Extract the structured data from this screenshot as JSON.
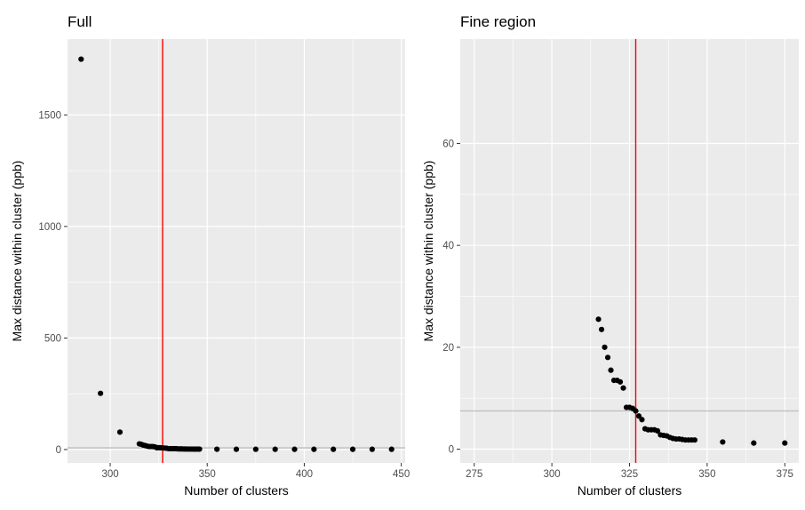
{
  "chart_data": [
    {
      "type": "scatter",
      "title": "Full",
      "xlabel": "Number of clusters",
      "ylabel": "Max distance within cluster (ppb)",
      "xlim": [
        278,
        452
      ],
      "ylim": [
        -60,
        1840
      ],
      "xticks": [
        300,
        350,
        400,
        450
      ],
      "yticks": [
        0,
        500,
        1000,
        1500
      ],
      "vline": 327,
      "hline": 7.5,
      "points": [
        [
          285,
          1750
        ],
        [
          295,
          252
        ],
        [
          305,
          78
        ],
        [
          315,
          25.5
        ],
        [
          316,
          23.5
        ],
        [
          317,
          20
        ],
        [
          318,
          18
        ],
        [
          319,
          15.5
        ],
        [
          320,
          13.5
        ],
        [
          321,
          13.5
        ],
        [
          322,
          13.2
        ],
        [
          323,
          12
        ],
        [
          324,
          8.2
        ],
        [
          325,
          8.2
        ],
        [
          326,
          8
        ],
        [
          327,
          7.5
        ],
        [
          328,
          6.5
        ],
        [
          329,
          5.8
        ],
        [
          330,
          4
        ],
        [
          331,
          3.8
        ],
        [
          332,
          3.8
        ],
        [
          333,
          3.8
        ],
        [
          334,
          3.6
        ],
        [
          335,
          2.8
        ],
        [
          336,
          2.7
        ],
        [
          337,
          2.6
        ],
        [
          338,
          2.3
        ],
        [
          339,
          2.1
        ],
        [
          340,
          2
        ],
        [
          341,
          2
        ],
        [
          342,
          1.9
        ],
        [
          343,
          1.8
        ],
        [
          344,
          1.8
        ],
        [
          345,
          1.8
        ],
        [
          346,
          1.8
        ],
        [
          355,
          1.4
        ],
        [
          365,
          1.2
        ],
        [
          375,
          1.2
        ],
        [
          385,
          1.1
        ],
        [
          395,
          1.1
        ],
        [
          405,
          1.1
        ],
        [
          415,
          1.1
        ],
        [
          425,
          1.1
        ],
        [
          435,
          1.1
        ],
        [
          445,
          1.1
        ]
      ]
    },
    {
      "type": "scatter",
      "title": "Fine region",
      "xlabel": "Number of clusters",
      "ylabel": "Max distance within cluster (ppb)",
      "xlim": [
        270.5,
        379.5
      ],
      "ylim": [
        -2.7,
        80.5
      ],
      "xticks": [
        275,
        300,
        325,
        350,
        375
      ],
      "yticks": [
        0,
        20,
        40,
        60
      ],
      "vline": 327,
      "hline": 7.5,
      "points": [
        [
          315,
          25.5
        ],
        [
          316,
          23.5
        ],
        [
          317,
          20
        ],
        [
          318,
          18
        ],
        [
          319,
          15.5
        ],
        [
          320,
          13.5
        ],
        [
          321,
          13.5
        ],
        [
          322,
          13.2
        ],
        [
          323,
          12
        ],
        [
          324,
          8.2
        ],
        [
          325,
          8.2
        ],
        [
          326,
          8
        ],
        [
          327,
          7.5
        ],
        [
          328,
          6.5
        ],
        [
          329,
          5.8
        ],
        [
          330,
          4
        ],
        [
          331,
          3.8
        ],
        [
          332,
          3.8
        ],
        [
          333,
          3.8
        ],
        [
          334,
          3.6
        ],
        [
          335,
          2.8
        ],
        [
          336,
          2.7
        ],
        [
          337,
          2.6
        ],
        [
          338,
          2.3
        ],
        [
          339,
          2.1
        ],
        [
          340,
          2
        ],
        [
          341,
          2
        ],
        [
          342,
          1.9
        ],
        [
          343,
          1.8
        ],
        [
          344,
          1.8
        ],
        [
          345,
          1.8
        ],
        [
          346,
          1.8
        ],
        [
          355,
          1.4
        ],
        [
          365,
          1.2
        ],
        [
          375,
          1.2
        ]
      ]
    }
  ]
}
